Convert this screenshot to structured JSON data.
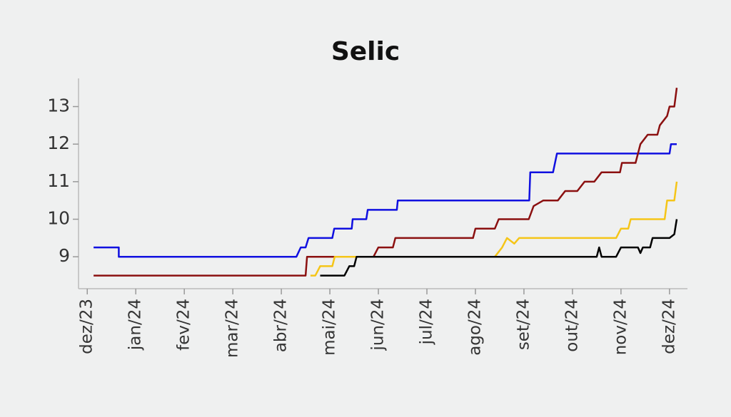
{
  "chart_data": {
    "type": "line",
    "title": "Selic",
    "xlim": [
      -0.18,
      12.37
    ],
    "xticks": [
      {
        "value": 0,
        "label": "dez/23"
      },
      {
        "value": 1,
        "label": "jan/24"
      },
      {
        "value": 2,
        "label": "fev/24"
      },
      {
        "value": 3,
        "label": "mar/24"
      },
      {
        "value": 4,
        "label": "abr/24"
      },
      {
        "value": 5,
        "label": "mai/24"
      },
      {
        "value": 6,
        "label": "jun/24"
      },
      {
        "value": 7,
        "label": "jul/24"
      },
      {
        "value": 8,
        "label": "ago/24"
      },
      {
        "value": 9,
        "label": "set/24"
      },
      {
        "value": 10,
        "label": "out/24"
      },
      {
        "value": 11,
        "label": "nov/24"
      },
      {
        "value": 12,
        "label": "dez/24"
      }
    ],
    "ylim": [
      8.15,
      13.75
    ],
    "yticks": [
      9,
      10,
      11,
      12,
      13
    ],
    "series": [
      {
        "color": "#1010e0",
        "x": [
          0.13,
          0.65,
          0.65,
          4.31,
          4.4,
          4.5,
          4.56,
          5.05,
          5.09,
          5.45,
          5.47,
          5.75,
          5.78,
          6.38,
          6.4,
          9.11,
          9.13,
          9.6,
          9.68,
          12.0,
          12.03,
          12.15
        ],
        "values": [
          9.25,
          9.25,
          9.0,
          9.0,
          9.25,
          9.25,
          9.5,
          9.5,
          9.75,
          9.75,
          10.0,
          10.0,
          10.25,
          10.25,
          10.5,
          10.5,
          11.25,
          11.25,
          11.75,
          11.75,
          12.0,
          12.0
        ]
      },
      {
        "color": "#8b1010",
        "x": [
          0.13,
          4.5,
          4.53,
          5.9,
          6.0,
          6.3,
          6.35,
          7.95,
          8.0,
          8.4,
          8.48,
          9.1,
          9.2,
          9.4,
          9.7,
          9.85,
          10.1,
          10.25,
          10.45,
          10.6,
          10.98,
          11.02,
          11.3,
          11.4,
          11.55,
          11.75,
          11.8,
          11.95,
          12.0,
          12.1,
          12.15
        ],
        "values": [
          8.5,
          8.5,
          9.0,
          9.0,
          9.25,
          9.25,
          9.5,
          9.5,
          9.75,
          9.75,
          10.0,
          10.0,
          10.35,
          10.5,
          10.5,
          10.75,
          10.75,
          11.0,
          11.0,
          11.25,
          11.25,
          11.5,
          11.5,
          12.0,
          12.25,
          12.25,
          12.5,
          12.75,
          13.0,
          13.0,
          13.5
        ]
      },
      {
        "color": "#f5c518",
        "x": [
          4.6,
          4.7,
          4.8,
          5.05,
          5.1,
          8.4,
          8.55,
          8.65,
          8.8,
          8.9,
          10.9,
          11.0,
          11.15,
          11.2,
          11.9,
          11.95,
          12.1,
          12.15
        ],
        "values": [
          8.5,
          8.5,
          8.75,
          8.75,
          9.0,
          9.0,
          9.25,
          9.5,
          9.35,
          9.5,
          9.5,
          9.75,
          9.75,
          10.0,
          10.0,
          10.5,
          10.5,
          11.0
        ]
      },
      {
        "color": "#000000",
        "x": [
          4.8,
          5.3,
          5.4,
          5.5,
          5.55,
          10.5,
          10.55,
          10.6,
          10.9,
          11.0,
          11.35,
          11.4,
          11.45,
          11.6,
          11.65,
          12.0,
          12.1,
          12.15
        ],
        "values": [
          8.5,
          8.5,
          8.75,
          8.75,
          9.0,
          9.0,
          9.25,
          9.0,
          9.0,
          9.25,
          9.25,
          9.1,
          9.25,
          9.25,
          9.5,
          9.5,
          9.6,
          10.0
        ]
      }
    ]
  }
}
